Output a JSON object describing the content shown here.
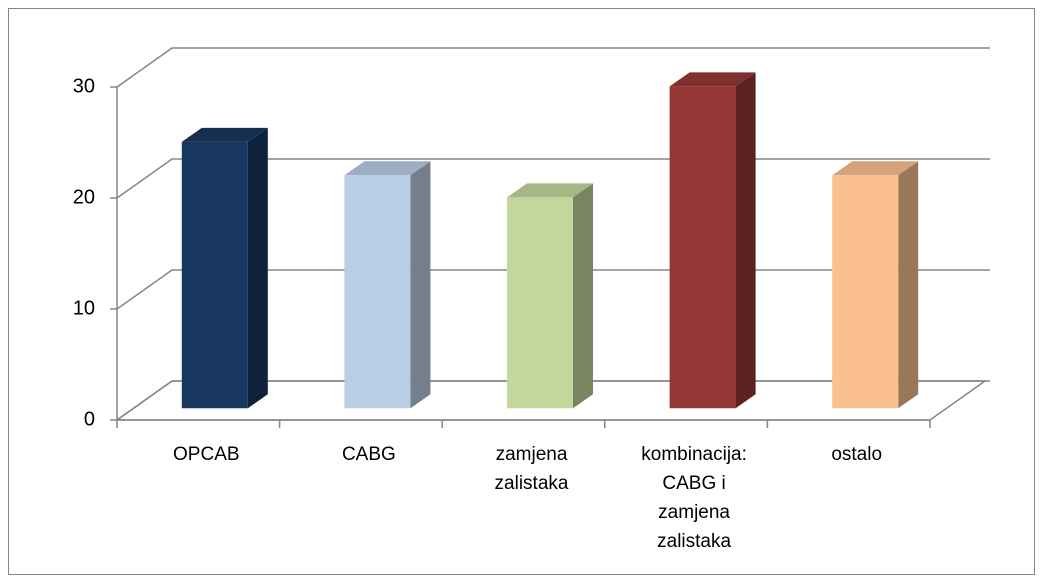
{
  "chart_data": {
    "type": "bar3d",
    "categories": [
      "OPCAB",
      "CABG",
      "zamjena zalistaka",
      "kombinacija: CABG i zamjena zalistaka",
      "ostalo"
    ],
    "values": [
      24,
      21,
      19,
      29,
      21
    ],
    "colors": [
      "#17375e",
      "#b9cde5",
      "#c3d69b",
      "#953735",
      "#fac090"
    ],
    "ylim": [
      0,
      30
    ],
    "yticks": [
      0,
      10,
      20,
      30
    ],
    "grid": true
  }
}
